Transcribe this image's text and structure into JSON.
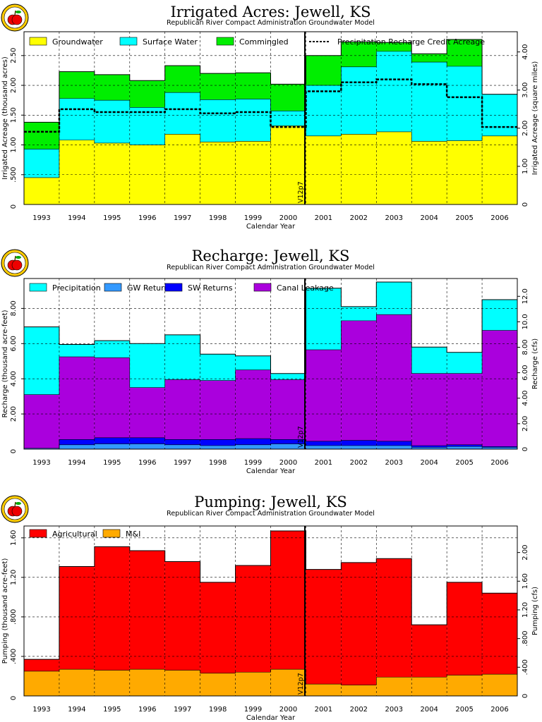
{
  "chart_data": [
    {
      "type": "area",
      "stacked": true,
      "title": "Irrigated Acres: Jewell, KS",
      "subtitle": "Republican River Compact Administration Groundwater Model",
      "xlabel": "Calendar Year",
      "ylabel": "Irrigated Acreage (thousand acres)",
      "y2label": "Irrigated Acreage (square miles)",
      "categories": [
        "1993",
        "1994",
        "1995",
        "1996",
        "1997",
        "1998",
        "1999",
        "2000",
        "2001",
        "2002",
        "2003",
        "2004",
        "2005",
        "2006"
      ],
      "ylim": [
        0,
        2.9
      ],
      "yticks": [
        ".500",
        "1.00",
        "1.50",
        "2.00",
        "2.50"
      ],
      "y2lim": [
        0,
        4.53
      ],
      "y2ticks": [
        "1.00",
        "2.00",
        "3.00",
        "4.00"
      ],
      "marker_label": "V12p7",
      "series": [
        {
          "name": "Groundwater",
          "color": "#ffff00",
          "values": [
            0.45,
            1.08,
            1.03,
            1.0,
            1.18,
            1.05,
            1.06,
            1.32,
            1.15,
            1.18,
            1.22,
            1.06,
            1.07,
            1.15
          ]
        },
        {
          "name": "Surface Water",
          "color": "#00ffff",
          "values": [
            0.48,
            0.7,
            0.72,
            0.63,
            0.7,
            0.71,
            0.71,
            0.25,
            0.85,
            1.13,
            1.35,
            1.33,
            1.25,
            0.7
          ]
        },
        {
          "name": "Commingled",
          "color": "#00ee00",
          "values": [
            0.45,
            0.45,
            0.43,
            0.45,
            0.45,
            0.44,
            0.44,
            0.45,
            0.5,
            0.42,
            0.15,
            0.14,
            0.45,
            0.0
          ]
        }
      ],
      "lines": [
        {
          "name": "Precipitation Recharge Credit Acreage",
          "values": [
            1.22,
            1.6,
            1.55,
            1.55,
            1.6,
            1.53,
            1.55,
            1.3,
            1.9,
            2.05,
            2.1,
            2.02,
            1.8,
            1.3
          ]
        }
      ]
    },
    {
      "type": "area",
      "stacked": true,
      "title": "Recharge: Jewell, KS",
      "subtitle": "Republican River Compact Administration Groundwater Model",
      "xlabel": "Calendar Year",
      "ylabel": "Recharge (thousand acre-feet)",
      "y2label": "Recharge (cfs)",
      "categories": [
        "1993",
        "1994",
        "1995",
        "1996",
        "1997",
        "1998",
        "1999",
        "2000",
        "2001",
        "2002",
        "2003",
        "2004",
        "2005",
        "2006"
      ],
      "ylim": [
        0,
        9.7
      ],
      "yticks": [
        "2.00",
        "4.00",
        "6.00",
        "8.00"
      ],
      "y2lim": [
        0,
        13.4
      ],
      "y2ticks": [
        "2.00",
        "4.00",
        "6.00",
        "8.00",
        "10.0",
        "12.0"
      ],
      "marker_label": "V12p7",
      "series": [
        {
          "name": "GW Returns",
          "color": "#3399ff",
          "values": [
            0.05,
            0.25,
            0.3,
            0.3,
            0.25,
            0.2,
            0.25,
            0.3,
            0.2,
            0.2,
            0.2,
            0.1,
            0.15,
            0.1
          ]
        },
        {
          "name": "SW Returns",
          "color": "#0000ff",
          "values": [
            0.0,
            0.3,
            0.35,
            0.35,
            0.3,
            0.35,
            0.35,
            0.25,
            0.25,
            0.3,
            0.25,
            0.1,
            0.1,
            0.05
          ]
        },
        {
          "name": "Canal Leakage",
          "color": "#aa00dd",
          "values": [
            3.05,
            4.7,
            4.55,
            2.85,
            3.4,
            3.35,
            3.9,
            3.4,
            5.2,
            6.8,
            7.2,
            4.1,
            4.05,
            6.6
          ]
        },
        {
          "name": "Precipitation",
          "color": "#00ffff",
          "values": [
            3.85,
            0.7,
            0.97,
            2.5,
            2.55,
            1.5,
            0.8,
            0.35,
            3.5,
            0.8,
            1.85,
            1.5,
            1.2,
            1.75
          ]
        }
      ]
    },
    {
      "type": "area",
      "stacked": true,
      "title": "Pumping: Jewell, KS",
      "subtitle": "Republican River Compact Administration Groundwater Model",
      "xlabel": "Calendar Year",
      "ylabel": "Pumping (thousand acre-feet)",
      "y2label": "Pumping (cfs)",
      "categories": [
        "1993",
        "1994",
        "1995",
        "1996",
        "1997",
        "1998",
        "1999",
        "2000",
        "2001",
        "2002",
        "2003",
        "2004",
        "2005",
        "2006"
      ],
      "ylim": [
        0,
        1.72
      ],
      "yticks": [
        ".400",
        ".800",
        "1.20",
        "1.60"
      ],
      "y2lim": [
        0,
        2.37
      ],
      "y2ticks": [
        ".400",
        ".800",
        "1.20",
        "1.60",
        "2.00"
      ],
      "marker_label": "V12p7",
      "series": [
        {
          "name": "M&I",
          "color": "#ffaa00",
          "values": [
            0.25,
            0.27,
            0.26,
            0.27,
            0.26,
            0.23,
            0.24,
            0.27,
            0.12,
            0.11,
            0.19,
            0.19,
            0.21,
            0.22
          ]
        },
        {
          "name": "Agricultural",
          "color": "#ff0000",
          "values": [
            0.12,
            1.04,
            1.25,
            1.2,
            1.1,
            0.92,
            1.08,
            1.4,
            1.16,
            1.24,
            1.2,
            0.53,
            0.94,
            0.82
          ]
        }
      ]
    }
  ]
}
